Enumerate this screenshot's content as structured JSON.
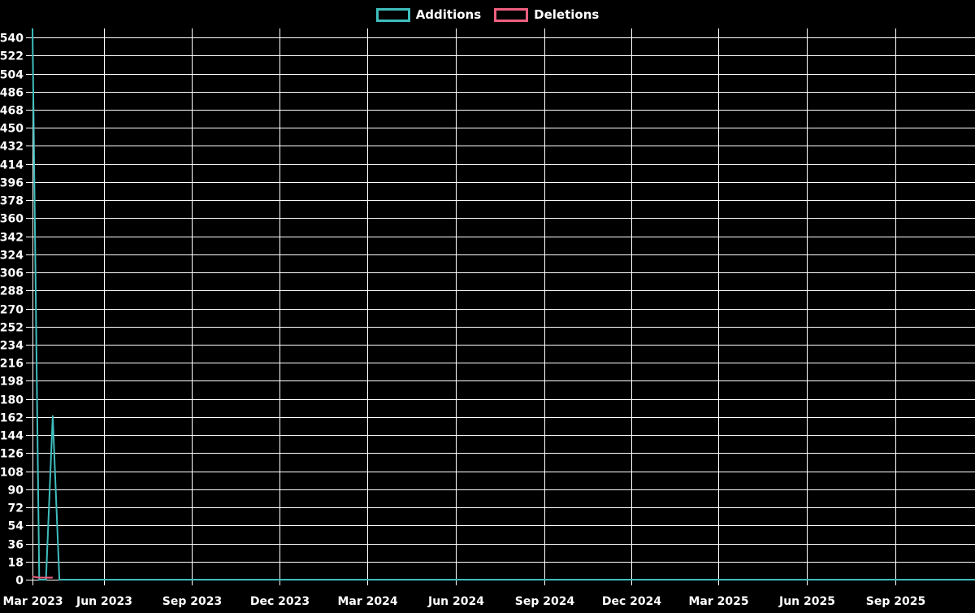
{
  "legend": {
    "additions_label": "Additions",
    "deletions_label": "Deletions"
  },
  "chart_data": {
    "type": "line",
    "title": "",
    "xlabel": "",
    "ylabel": "",
    "background_color": "#000000",
    "grid": true,
    "grid_color": "#ffffff",
    "text_color": "#ffffff",
    "legend_position": "top-center",
    "y_axis": {
      "min": 0,
      "max": 549,
      "tick_step": 18,
      "tick_labels": [
        "0",
        "18",
        "36",
        "54",
        "72",
        "90",
        "108",
        "126",
        "144",
        "162",
        "180",
        "198",
        "216",
        "234",
        "252",
        "270",
        "288",
        "306",
        "324",
        "342",
        "360",
        "378",
        "396",
        "414",
        "432",
        "450",
        "468",
        "486",
        "504",
        "522",
        "540"
      ]
    },
    "x_axis": {
      "domain_start": "2023-03-19",
      "domain_end": "2025-11-23",
      "ticks": [
        {
          "label": "Mar 2023",
          "date": "2023-03-19"
        },
        {
          "label": "Jun 2023",
          "date": "2023-06-01"
        },
        {
          "label": "Sep 2023",
          "date": "2023-09-01"
        },
        {
          "label": "Dec 2023",
          "date": "2023-12-01"
        },
        {
          "label": "Mar 2024",
          "date": "2024-03-01"
        },
        {
          "label": "Jun 2024",
          "date": "2024-06-01"
        },
        {
          "label": "Sep 2024",
          "date": "2024-09-01"
        },
        {
          "label": "Dec 2024",
          "date": "2024-12-01"
        },
        {
          "label": "Mar 2025",
          "date": "2025-03-01"
        },
        {
          "label": "Jun 2025",
          "date": "2025-06-01"
        },
        {
          "label": "Sep 2025",
          "date": "2025-09-01"
        }
      ]
    },
    "series": [
      {
        "name": "Additions",
        "color": "#3fbdbd",
        "points": [
          {
            "date": "2023-03-19",
            "value": 549
          },
          {
            "date": "2023-03-26",
            "value": 0
          },
          {
            "date": "2023-04-02",
            "value": 0
          },
          {
            "date": "2023-04-09",
            "value": 163
          },
          {
            "date": "2023-04-16",
            "value": 0
          },
          {
            "date": "2025-11-23",
            "value": 0
          }
        ]
      },
      {
        "name": "Deletions",
        "color": "#ef5f7e",
        "points": [
          {
            "date": "2023-03-19",
            "value": 3
          },
          {
            "date": "2023-03-26",
            "value": 2
          },
          {
            "date": "2023-04-02",
            "value": 2
          },
          {
            "date": "2023-04-09",
            "value": 2
          }
        ]
      }
    ]
  }
}
